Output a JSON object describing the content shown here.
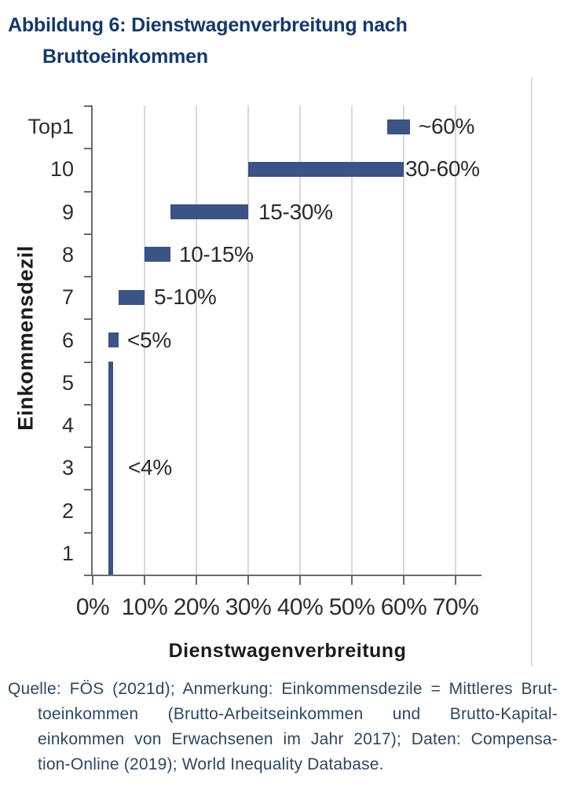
{
  "figure": {
    "title_line1": "Abbildung 6: Dienstwagenverbreitung nach",
    "title_line2": "Bruttoeinkommen"
  },
  "chart_data": {
    "type": "bar",
    "orientation": "horizontal",
    "title": "Dienstwagenverbreitung nach Bruttoeinkommen",
    "xlabel": "Dienstwagenverbreitung",
    "ylabel": "Einkommensdezil",
    "categories": [
      "Top1",
      "10",
      "9",
      "8",
      "7",
      "6",
      "5",
      "4",
      "3",
      "2",
      "1"
    ],
    "x_tick_labels": [
      "0%",
      "10%",
      "20%",
      "30%",
      "40%",
      "50%",
      "60%",
      "70%"
    ],
    "x_tick_values": [
      0,
      10,
      20,
      30,
      40,
      50,
      60,
      70
    ],
    "xlim": [
      0,
      85
    ],
    "grid": "vertical gridlines every 10%, light gray",
    "legend": "none",
    "bar_color": "#3b5385",
    "bars": [
      {
        "category": "Top1",
        "from_pct": 56.8,
        "to_pct": 61.2,
        "label": "~60%"
      },
      {
        "category": "10",
        "from_pct": 30,
        "to_pct": 60,
        "label": "30-60%"
      },
      {
        "category": "9",
        "from_pct": 15,
        "to_pct": 30,
        "label": "15-30%"
      },
      {
        "category": "8",
        "from_pct": 10,
        "to_pct": 15,
        "label": "10-15%"
      },
      {
        "category": "7",
        "from_pct": 5,
        "to_pct": 10,
        "label": "5-10%"
      },
      {
        "category": "6",
        "from_pct": 3,
        "to_pct": 5,
        "label": "<5%"
      }
    ],
    "band": {
      "categories": [
        "5",
        "4",
        "3",
        "2",
        "1"
      ],
      "from_pct": 3,
      "to_pct": 4,
      "label": "<4%",
      "label_at_category": "3"
    }
  },
  "source": {
    "lines": [
      "Quelle: FÖS (2021d); Anmerkung: Einkommensdezile = Mittleres Brut-",
      "toeinkommen (Brutto-Arbeitseinkommen und Brutto-Kapital-",
      "einkommen von Erwachsenen im Jahr 2017); Daten: Compensa-",
      "tion-Online (2019); World Inequality Database."
    ]
  },
  "colors": {
    "title": "#133a6d",
    "bar": "#3b5385",
    "axis": "#6b6b6b",
    "gridline": "#d9d9d9",
    "chart_text": "#2b2b2b",
    "source_text": "#2d4763",
    "page_rule": "#e0e0e0",
    "background": "#ffffff"
  }
}
